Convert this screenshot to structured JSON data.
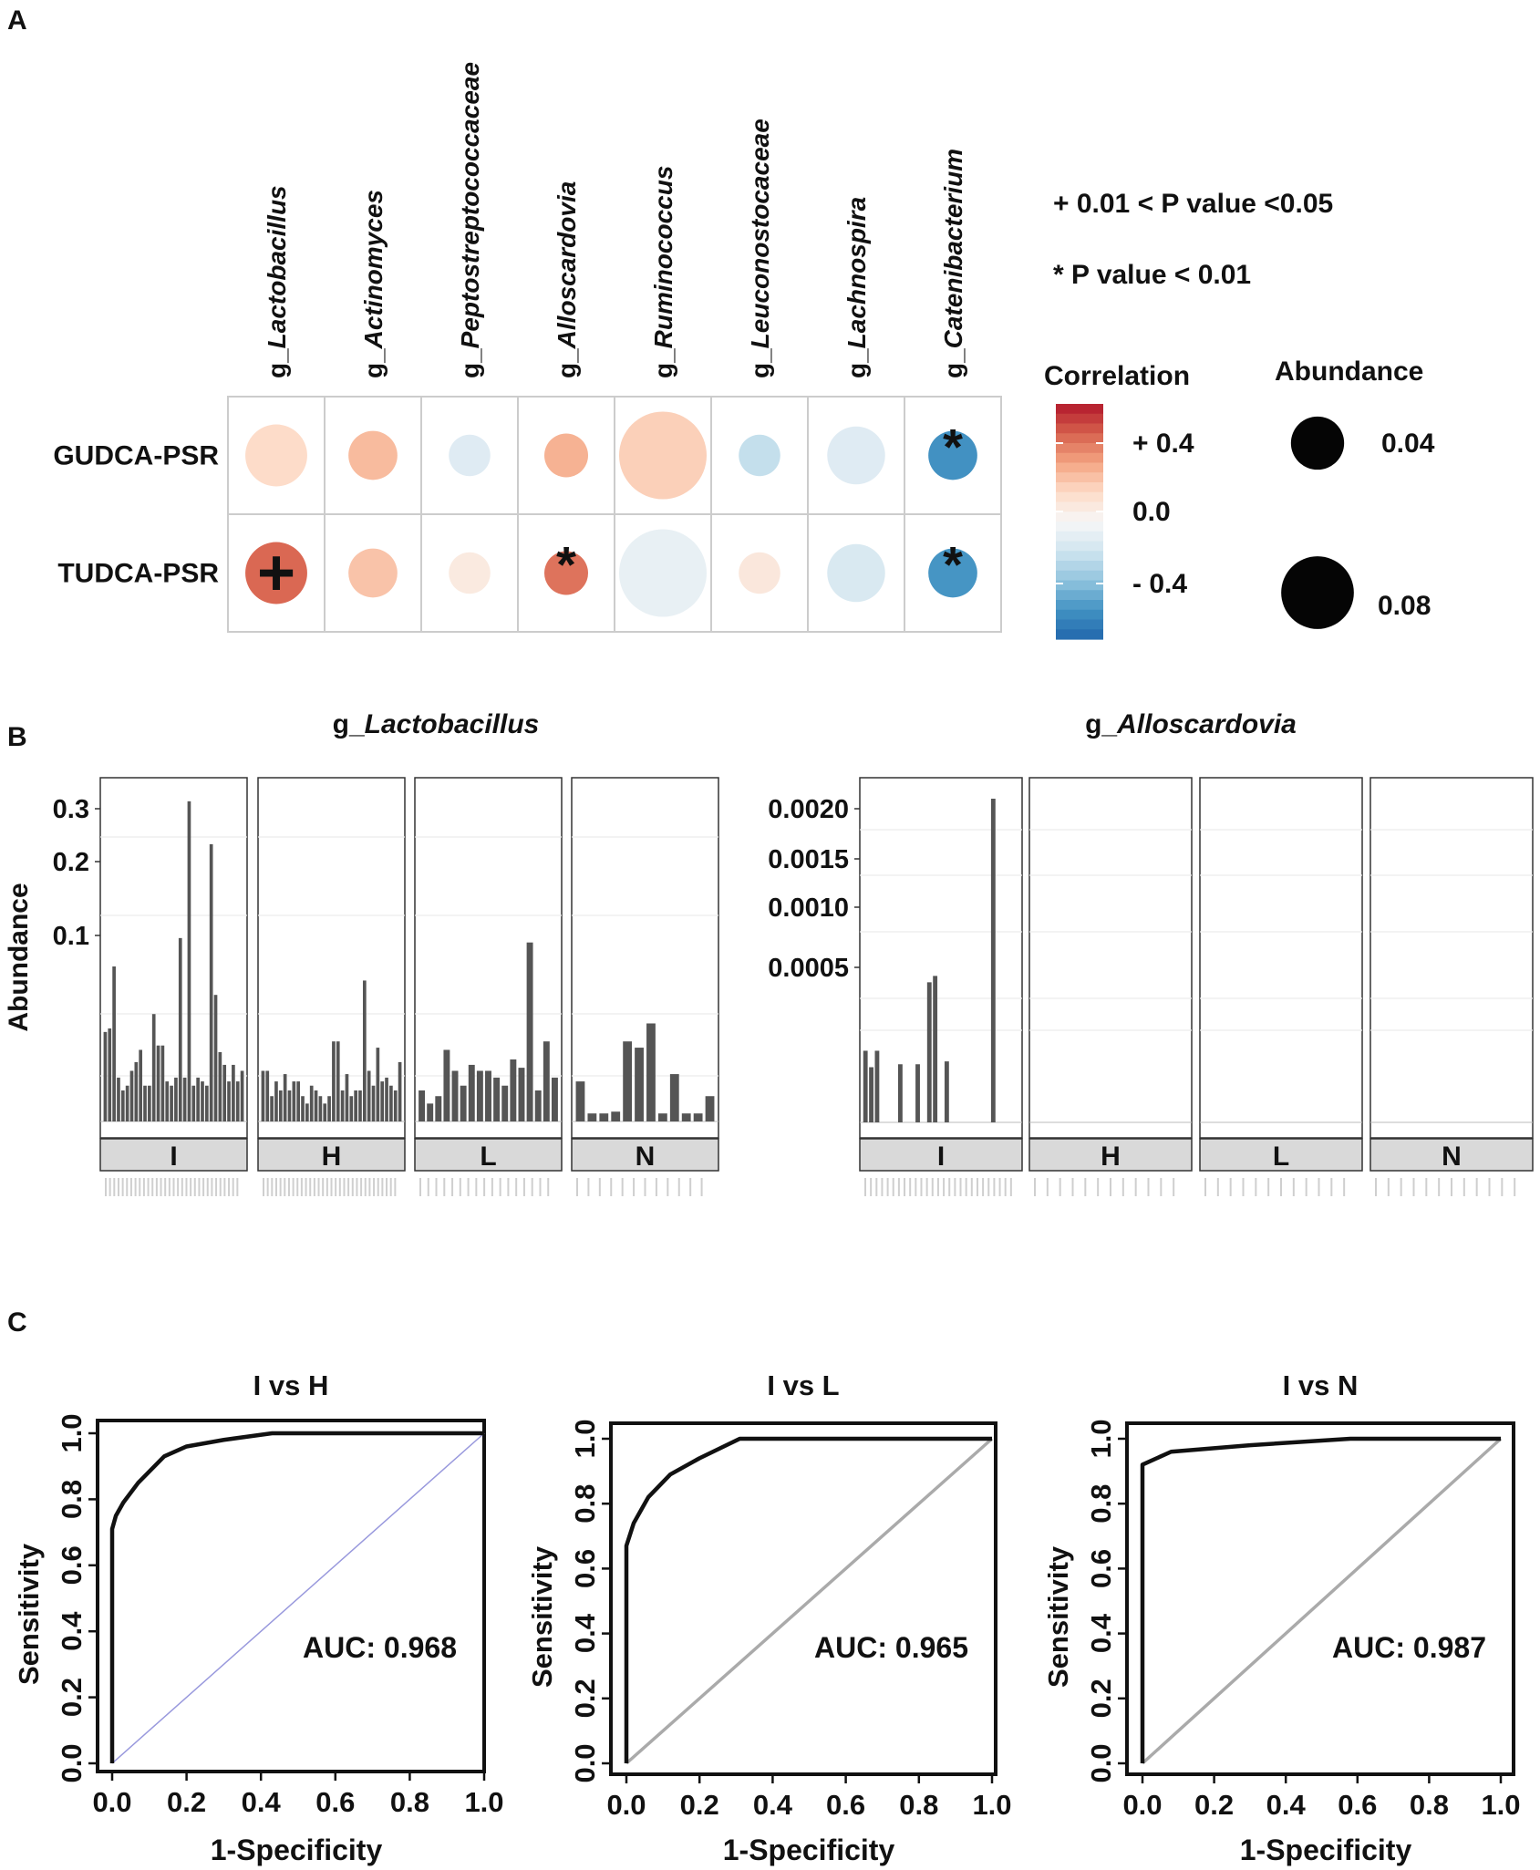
{
  "panel_labels": [
    "A",
    "B",
    "C"
  ],
  "chart_data": [
    {
      "id": "A",
      "type": "bubble-correlation",
      "columns": [
        {
          "prefix": "g_",
          "name": "Lactobacillus"
        },
        {
          "prefix": "g_",
          "name": "Actinomyces"
        },
        {
          "prefix": "g_",
          "name": "Peptostreptococcaceae"
        },
        {
          "prefix": "g_",
          "name": "Alloscardovia"
        },
        {
          "prefix": "g_",
          "name": "Ruminococcus"
        },
        {
          "prefix": "g_",
          "name": "Leuconostocaceae"
        },
        {
          "prefix": "g_",
          "name": "Lachnospira"
        },
        {
          "prefix": "g_",
          "name": "Catenibacterium"
        }
      ],
      "rows": [
        "GUDCA-PSR",
        "TUDCA-PSR"
      ],
      "correlation": [
        [
          0.12,
          0.2,
          -0.08,
          0.22,
          0.15,
          -0.15,
          -0.08,
          -0.38
        ],
        [
          0.36,
          0.18,
          0.06,
          0.34,
          -0.05,
          0.07,
          -0.1,
          -0.37
        ]
      ],
      "abundance": [
        [
          0.04,
          0.025,
          0.018,
          0.02,
          0.08,
          0.018,
          0.035,
          0.025
        ],
        [
          0.04,
          0.025,
          0.018,
          0.02,
          0.08,
          0.018,
          0.035,
          0.025
        ]
      ],
      "significance": [
        [
          "",
          "",
          "",
          "",
          "",
          "",
          "",
          "*"
        ],
        [
          "+",
          "",
          "",
          "*",
          "",
          "",
          "",
          "*"
        ]
      ],
      "legend_notes": [
        "+ 0.01 < P value <0.05",
        "*  P value < 0.01"
      ],
      "colorbar_title": "Correlation",
      "colorbar_ticks": [
        "+ 0.4",
        "0.0",
        "- 0.4"
      ],
      "colorbar_colors": [
        "#b2182b",
        "#d6604d",
        "#f4a582",
        "#fddbc7",
        "#f7f7f7",
        "#d1e5f0",
        "#92c5de",
        "#4393c3",
        "#2166ac"
      ],
      "size_legend_title": "Abundance",
      "size_legend": [
        0.04,
        0.08
      ]
    },
    {
      "id": "B1",
      "type": "bar",
      "title_prefix": "g_",
      "title_italic": "Lactobacillus",
      "ylabel": "Abundance",
      "yticks": [
        "0.3",
        "0.2",
        "0.1"
      ],
      "facets": [
        {
          "label": "I",
          "values": [
            0.025,
            0.027,
            0.075,
            0.006,
            0.003,
            0.004,
            0.008,
            0.011,
            0.016,
            0.004,
            0.004,
            0.036,
            0.018,
            0.018,
            0.005,
            0.004,
            0.006,
            0.105,
            0.006,
            0.32,
            0.004,
            0.006,
            0.005,
            0.004,
            0.24,
            0.05,
            0.015,
            0.01,
            0.005,
            0.01,
            0.005,
            0.008
          ]
        },
        {
          "label": "H",
          "values": [
            0.008,
            0.008,
            0.002,
            0.005,
            0.003,
            0.007,
            0.003,
            0.005,
            0.005,
            0.002,
            0.001,
            0.004,
            0.003,
            0.002,
            0.001,
            0.002,
            0.02,
            0.02,
            0.003,
            0.007,
            0.002,
            0.003,
            0.003,
            0.062,
            0.008,
            0.004,
            0.017,
            0.005,
            0.006,
            0.004,
            0.003,
            0.011
          ]
        },
        {
          "label": "L",
          "values": [
            0.003,
            0.001,
            0.002,
            0.016,
            0.008,
            0.004,
            0.01,
            0.008,
            0.008,
            0.006,
            0.004,
            0.012,
            0.009,
            0.1,
            0.003,
            0.02,
            0.006
          ]
        },
        {
          "label": "N",
          "values": [
            0.005,
            0.0002,
            0.0002,
            0.0003,
            0.02,
            0.017,
            0.03,
            0.0002,
            0.007,
            0.0002,
            0.0002,
            0.002
          ]
        }
      ],
      "x_ticks_note": "sample IDs (unreadable)"
    },
    {
      "id": "B2",
      "type": "bar",
      "title_prefix": "g_",
      "title_italic": "Alloscardovia",
      "yticks": [
        "0.0020",
        "0.0015",
        "0.0010",
        "0.0005"
      ],
      "facets": [
        {
          "label": "I",
          "values": [
            0.00017,
            0.00011,
            0.00017,
            0,
            0,
            0,
            0.00012,
            0,
            0,
            0.00012,
            0,
            0.00052,
            0.00056,
            0,
            0.00013,
            0,
            0,
            0,
            0,
            0,
            0,
            0,
            0.0021,
            0,
            0,
            0,
            0
          ]
        },
        {
          "label": "H",
          "values": []
        },
        {
          "label": "L",
          "values": []
        },
        {
          "label": "N",
          "values": []
        }
      ]
    },
    {
      "id": "C1",
      "type": "line",
      "title": "I vs H",
      "xlabel": "1-Specificity",
      "ylabel": "Sensitivity",
      "auc_text": "AUC: 0.968",
      "diag_color": "#9999dd",
      "xlim": [
        0,
        1
      ],
      "ylim": [
        0,
        1
      ],
      "x": [
        0,
        0,
        0.01,
        0.03,
        0.07,
        0.14,
        0.2,
        0.3,
        0.43,
        1.0
      ],
      "y": [
        0,
        0.71,
        0.75,
        0.79,
        0.85,
        0.93,
        0.96,
        0.98,
        1.0,
        1.0
      ]
    },
    {
      "id": "C2",
      "type": "line",
      "title": "I vs L",
      "xlabel": "1-Specificity",
      "ylabel": "Sensitivity",
      "auc_text": "AUC: 0.965",
      "diag_color": "#aaaaaa",
      "xlim": [
        0,
        1
      ],
      "ylim": [
        0,
        1
      ],
      "x": [
        0,
        0,
        0.02,
        0.06,
        0.12,
        0.2,
        0.31,
        1.0
      ],
      "y": [
        0,
        0.67,
        0.74,
        0.82,
        0.89,
        0.94,
        1.0,
        1.0
      ]
    },
    {
      "id": "C3",
      "type": "line",
      "title": "I vs N",
      "xlabel": "1-Specificity",
      "ylabel": "Sensitivity",
      "auc_text": "AUC: 0.987",
      "diag_color": "#aaaaaa",
      "xlim": [
        0,
        1
      ],
      "ylim": [
        0,
        1
      ],
      "x": [
        0,
        0,
        0.08,
        0.3,
        0.58,
        1.0
      ],
      "y": [
        0,
        0.92,
        0.96,
        0.98,
        1.0,
        1.0
      ]
    }
  ]
}
